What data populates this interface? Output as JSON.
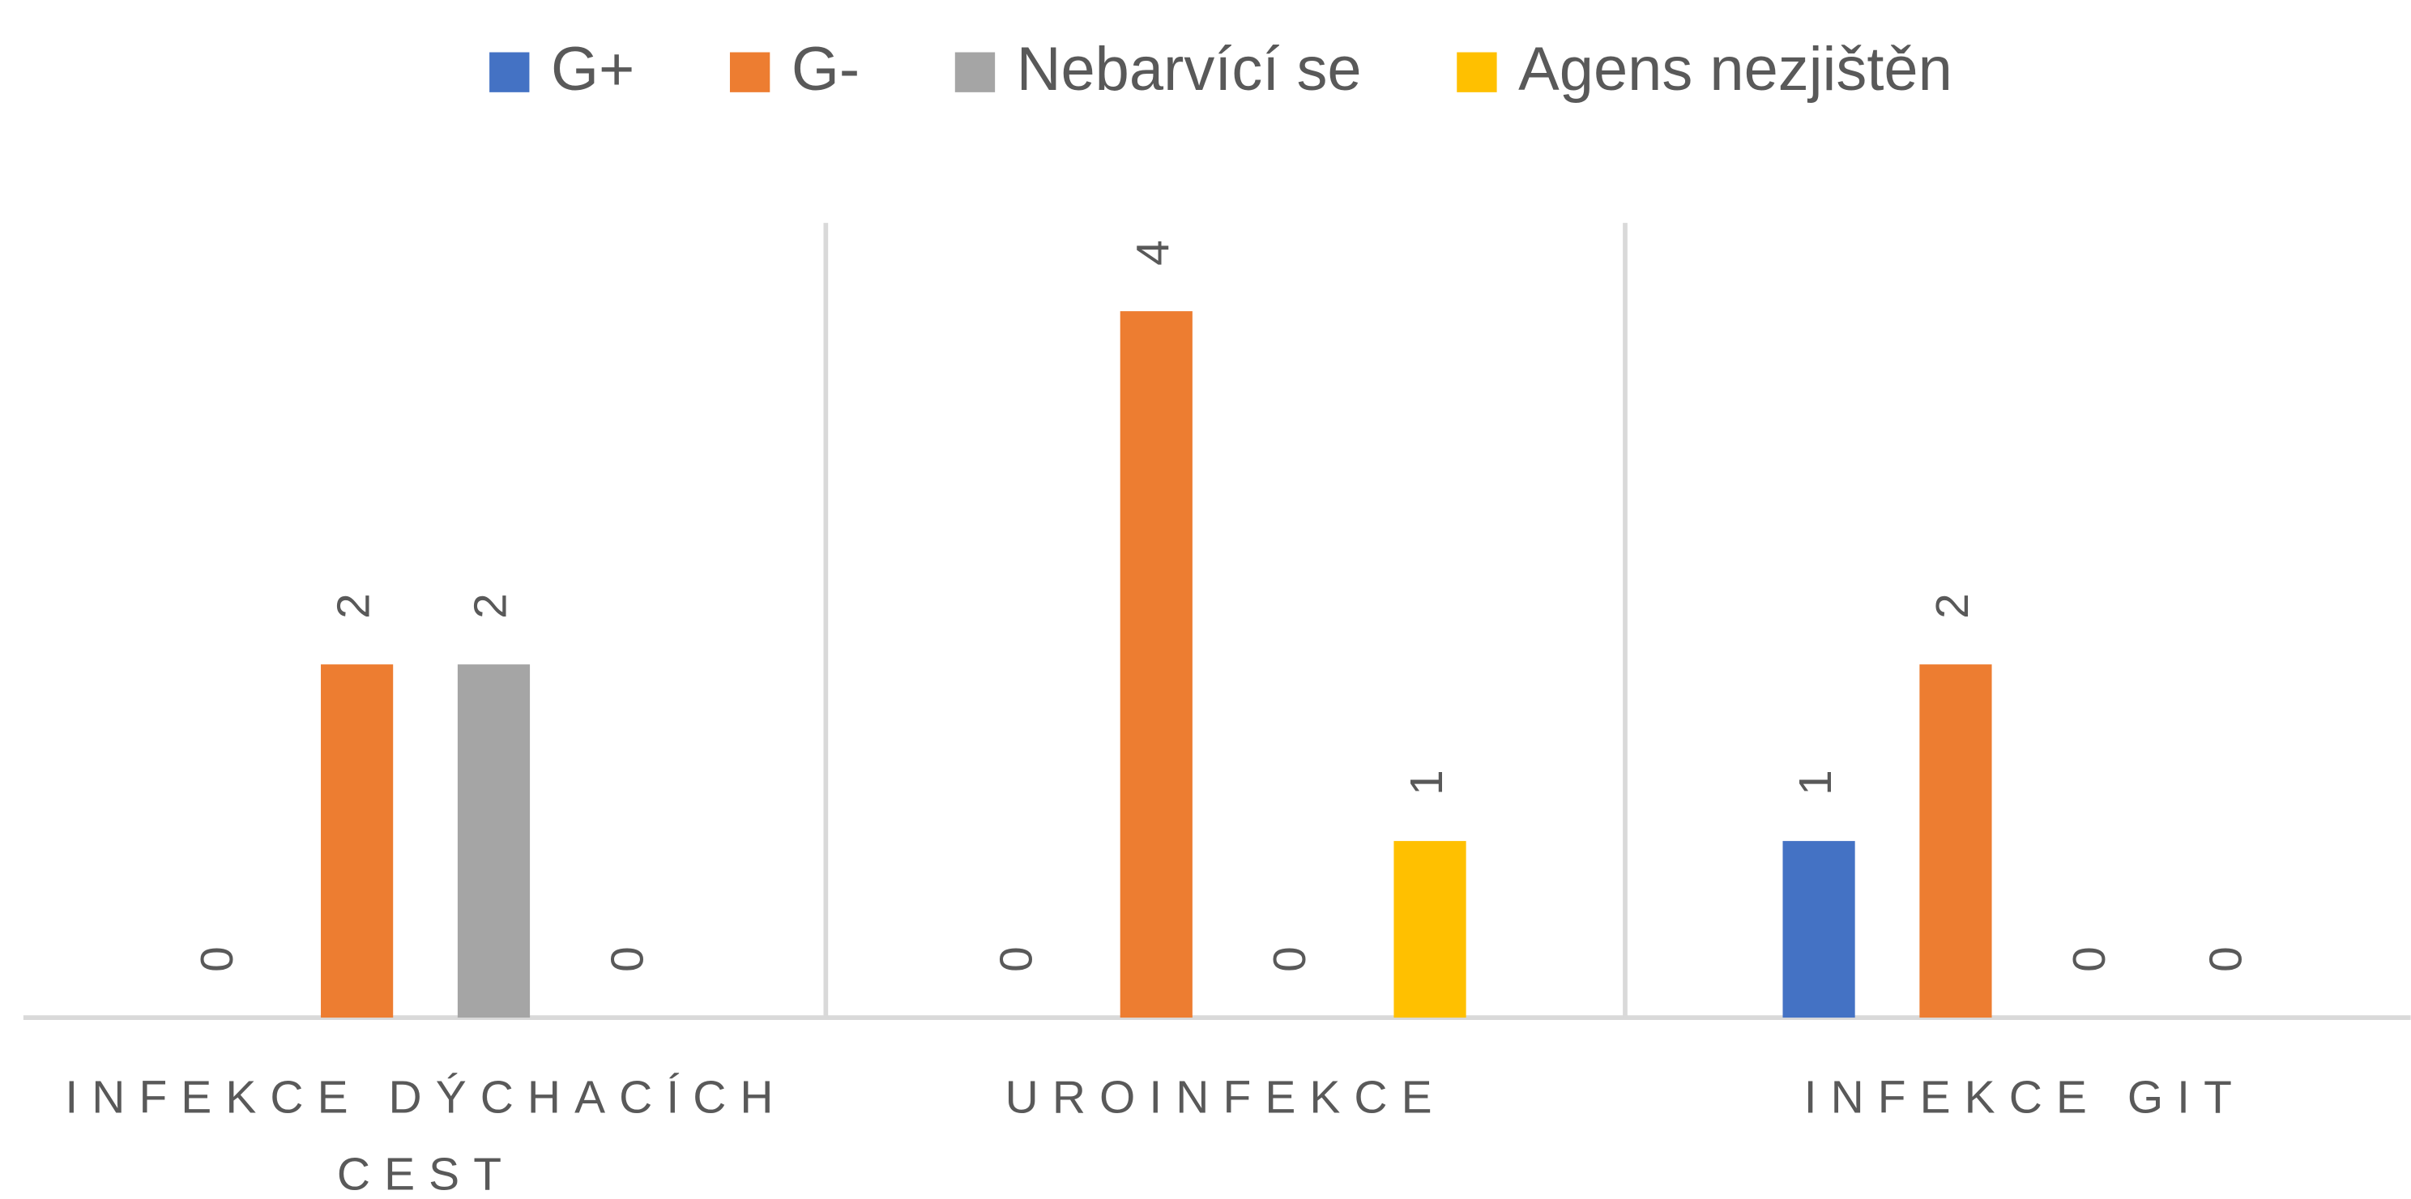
{
  "chart_data": {
    "type": "bar",
    "categories": [
      "INFEKCE DÝCHACÍCH CEST",
      "UROINFEKCE",
      "INFEKCE GIT"
    ],
    "series": [
      {
        "name": "G+",
        "color": "#4472c4",
        "values": [
          0,
          0,
          1
        ]
      },
      {
        "name": "G-",
        "color": "#ed7d31",
        "values": [
          2,
          4,
          2
        ]
      },
      {
        "name": "Nebarvící se",
        "color": "#a5a5a5",
        "values": [
          2,
          0,
          0
        ]
      },
      {
        "name": "Agens nezjištěn",
        "color": "#ffc000",
        "values": [
          0,
          1,
          0
        ]
      }
    ],
    "ylim": [
      0,
      4.5
    ],
    "legend": "top",
    "data_labels": true
  }
}
